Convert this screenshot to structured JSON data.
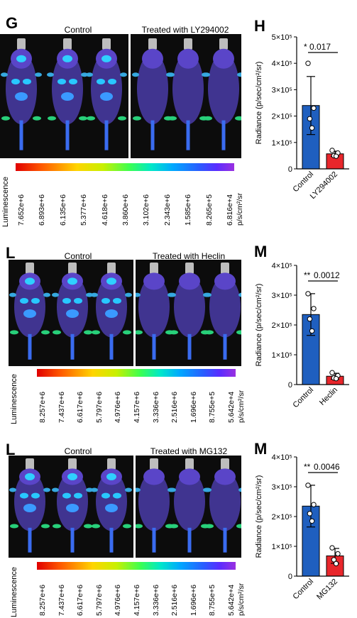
{
  "panels": [
    {
      "image_letter": "G",
      "chart_letter": "H",
      "control_label": "Control",
      "treated_label": "Treated with LY294002",
      "luminescence_label": "Luminescence",
      "scale_ticks": [
        "7.652e+6",
        "6.893e+6",
        "6.135e+6",
        "5.377e+6",
        "4.618e+6",
        "3.860e+6",
        "3.102e+6",
        "2.343e+6",
        "1.585e+6",
        "8.265e+5",
        "6.816e+4"
      ],
      "scale_unit": "p/s/cm²/sr"
    },
    {
      "image_letter": "L",
      "chart_letter": "M",
      "control_label": "Control",
      "treated_label": "Treated with Heclin",
      "luminescence_label": "Luminescence",
      "scale_ticks": [
        "8.257e+6",
        "7.437e+6",
        "6.617e+6",
        "5.797e+6",
        "4.976e+6",
        "4.157e+6",
        "3.336e+6",
        "2.516e+6",
        "1.696e+6",
        "8.755e+5",
        "5.642e+4"
      ],
      "scale_unit": "p/s/cm²/sr"
    },
    {
      "image_letter": "L",
      "chart_letter": "M",
      "control_label": "Control",
      "treated_label": "Treated with MG132",
      "luminescence_label": "Luminescence",
      "scale_ticks": [
        "8.257e+6",
        "7.437e+6",
        "6.617e+6",
        "5.797e+6",
        "4.976e+6",
        "4.157e+6",
        "3.336e+6",
        "2.516e+6",
        "1.696e+6",
        "8.755e+5",
        "5.642e+4"
      ],
      "scale_unit": "p/s/cm²/sr"
    }
  ],
  "chart_data": [
    {
      "type": "bar",
      "categories": [
        "Control",
        "LY294002"
      ],
      "values": [
        240000.0,
        57000.0
      ],
      "errors": [
        110000.0,
        10000.0
      ],
      "points": [
        [
          400000.0,
          230000.0,
          190000.0,
          155000.0
        ],
        [
          70000.0,
          60000.0,
          50000.0,
          48000.0
        ]
      ],
      "colors": [
        "#1f5fbf",
        "#e8262b"
      ],
      "ylabel": "Radiance (p/sec/cm²/sr)",
      "yticks": [
        "0",
        "1×10⁵",
        "2×10⁵",
        "3×10⁵",
        "4×10⁵",
        "5×10⁵"
      ],
      "ylim": [
        0,
        500000.0
      ],
      "sig_stars": "*",
      "sig_p": "0.017"
    },
    {
      "type": "bar",
      "categories": [
        "Control",
        "Heclin"
      ],
      "values": [
        235000.0,
        28000.0
      ],
      "errors": [
        70000.0,
        10000.0
      ],
      "points": [
        [
          305000.0,
          255000.0,
          220000.0,
          180000.0
        ],
        [
          40000.0,
          30000.0,
          22000.0,
          20000.0
        ]
      ],
      "colors": [
        "#1f5fbf",
        "#e8262b"
      ],
      "ylabel": "Radiance (p/sec/cm²/sr)",
      "yticks": [
        "0",
        "1×10⁵",
        "2×10⁵",
        "3×10⁵",
        "4×10⁵"
      ],
      "ylim": [
        0,
        400000.0
      ],
      "sig_stars": "**",
      "sig_p": "0.0012"
    },
    {
      "type": "bar",
      "categories": [
        "Control",
        "MG132"
      ],
      "values": [
        235000.0,
        68000.0
      ],
      "errors": [
        70000.0,
        25000.0
      ],
      "points": [
        [
          305000.0,
          240000.0,
          210000.0,
          185000.0
        ],
        [
          95000.0,
          75000.0,
          55000.0,
          42000.0
        ]
      ],
      "colors": [
        "#1f5fbf",
        "#e8262b"
      ],
      "ylabel": "Radiance (p/sec/cm²/sr)",
      "yticks": [
        "0",
        "1×10⁵",
        "2×10⁵",
        "3×10⁵",
        "4×10⁵"
      ],
      "ylim": [
        0,
        400000.0
      ],
      "sig_stars": "**",
      "sig_p": "0.0046"
    }
  ]
}
